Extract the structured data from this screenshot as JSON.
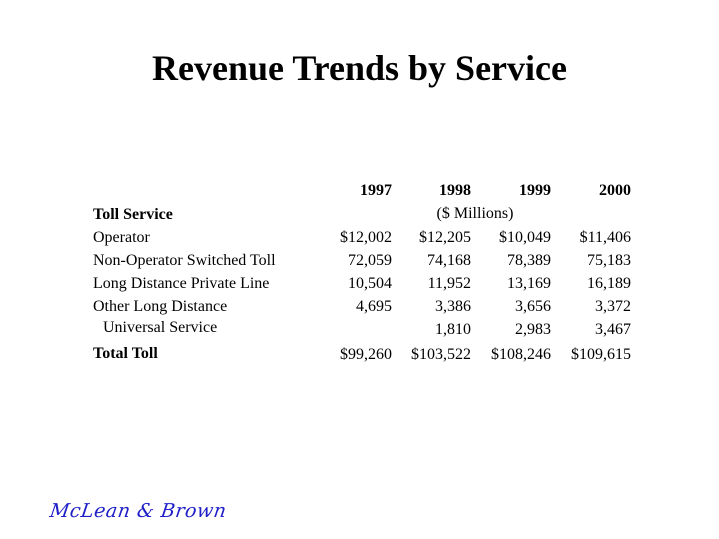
{
  "title": "Revenue Trends by Service",
  "table": {
    "years": [
      "1997",
      "1998",
      "1999",
      "2000"
    ],
    "section_label": "Toll Service",
    "units": "($ Millions)",
    "rows": [
      {
        "label": "Operator",
        "values": [
          "$12,002",
          "$12,205",
          "$10,049",
          "$11,406"
        ]
      },
      {
        "label": "Non-Operator Switched Toll",
        "values": [
          "72,059",
          "74,168",
          "78,389",
          "75,183"
        ]
      },
      {
        "label": "Long Distance Private Line",
        "values": [
          "10,504",
          "11,952",
          "13,169",
          "16,189"
        ]
      },
      {
        "label": "Other Long Distance",
        "values": [
          "4,695",
          "3,386",
          "3,656",
          "3,372"
        ]
      },
      {
        "label": "Universal Service",
        "values": [
          "",
          "1,810",
          "2,983",
          "3,467"
        ]
      }
    ],
    "total": {
      "label": "Total Toll",
      "values": [
        "$99,260",
        "$103,522",
        "$108,246",
        "$109,615"
      ]
    }
  },
  "logo": {
    "text": "McLean & Brown",
    "color": "#2020c8"
  }
}
